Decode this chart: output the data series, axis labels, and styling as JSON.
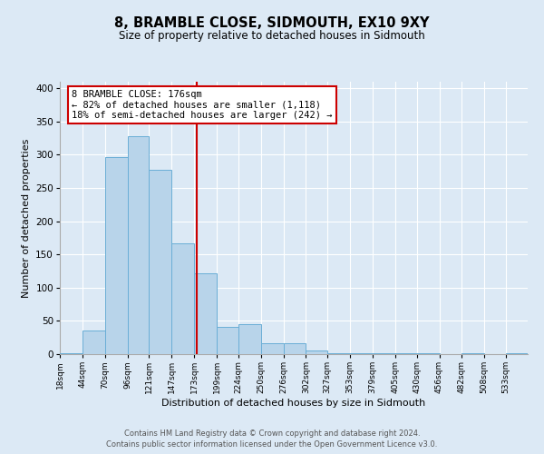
{
  "title": "8, BRAMBLE CLOSE, SIDMOUTH, EX10 9XY",
  "subtitle": "Size of property relative to detached houses in Sidmouth",
  "xlabel": "Distribution of detached houses by size in Sidmouth",
  "ylabel": "Number of detached properties",
  "bin_labels": [
    "18sqm",
    "44sqm",
    "70sqm",
    "96sqm",
    "121sqm",
    "147sqm",
    "173sqm",
    "199sqm",
    "224sqm",
    "250sqm",
    "276sqm",
    "302sqm",
    "327sqm",
    "353sqm",
    "379sqm",
    "405sqm",
    "430sqm",
    "456sqm",
    "482sqm",
    "508sqm",
    "533sqm"
  ],
  "bar_heights": [
    2,
    36,
    297,
    328,
    278,
    167,
    122,
    41,
    45,
    16,
    17,
    6,
    2,
    2,
    2,
    2,
    2,
    0,
    2,
    0,
    2
  ],
  "bar_color": "#b8d4ea",
  "bar_edge_color": "#6aaed6",
  "bin_edges": [
    18,
    44,
    70,
    96,
    121,
    147,
    173,
    199,
    224,
    250,
    276,
    302,
    327,
    353,
    379,
    405,
    430,
    456,
    482,
    508,
    533,
    558
  ],
  "property_value": 176,
  "annotation_title": "8 BRAMBLE CLOSE: 176sqm",
  "annotation_line1": "← 82% of detached houses are smaller (1,118)",
  "annotation_line2": "18% of semi-detached houses are larger (242) →",
  "annotation_box_color": "#ffffff",
  "annotation_border_color": "#cc0000",
  "line_color": "#cc0000",
  "ylim": [
    0,
    410
  ],
  "background_color": "#dce9f5",
  "plot_bg_color": "#dce9f5",
  "footnote1": "Contains HM Land Registry data © Crown copyright and database right 2024.",
  "footnote2": "Contains public sector information licensed under the Open Government Licence v3.0."
}
